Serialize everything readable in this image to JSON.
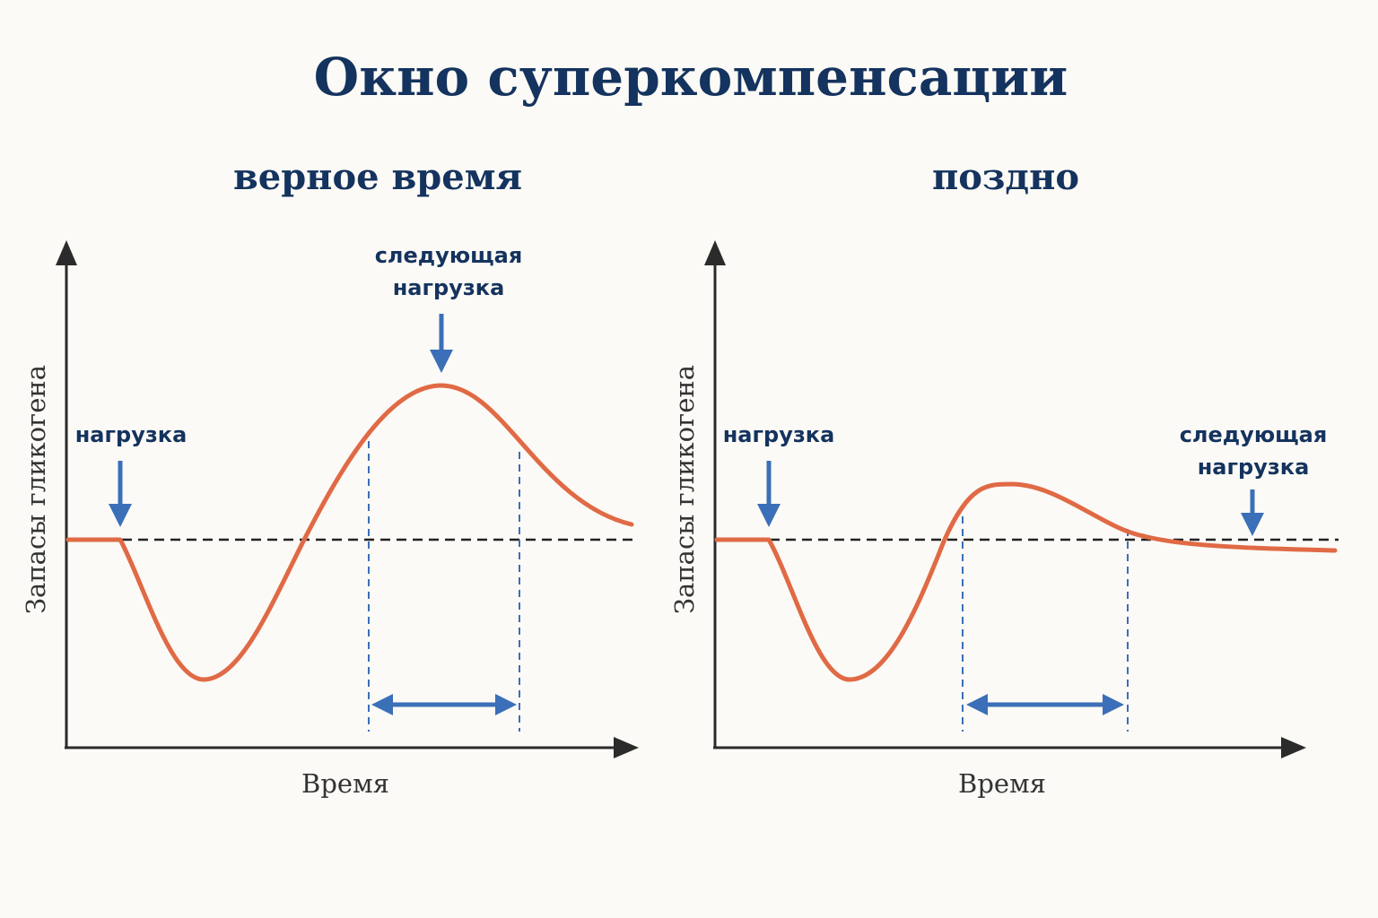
{
  "title": "Окно суперкомпенсации",
  "panels": [
    {
      "subtitle": "верное время",
      "load_label": "нагрузка",
      "next_load_label": [
        "следующая",
        "нагрузка"
      ],
      "y_label": "Запасы гликогена",
      "x_label": "Время"
    },
    {
      "subtitle": "поздно",
      "load_label": "нагрузка",
      "next_load_label": [
        "следующая",
        "нагрузка"
      ],
      "y_label": "Запасы гликогена",
      "x_label": "Время"
    }
  ],
  "colors": {
    "curve": "#e06a45",
    "arrows": "#3b6fb8",
    "text": "#14335e",
    "axes": "#2b2b2b"
  }
}
